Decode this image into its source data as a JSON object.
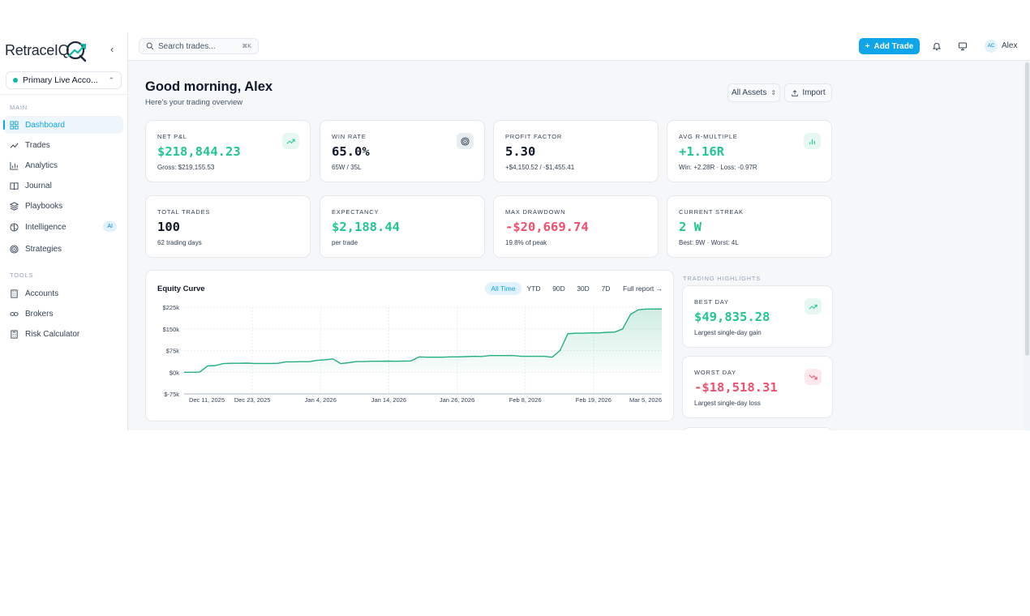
{
  "app": {
    "logo_text": "RetraceIQ"
  },
  "sidebar": {
    "account": {
      "label": "Primary Live Acco..."
    },
    "section_main": "MAIN",
    "section_tools": "TOOLS",
    "main_items": [
      {
        "label": "Dashboard",
        "icon": "dashboard-icon",
        "active": true
      },
      {
        "label": "Trades",
        "icon": "trend-icon"
      },
      {
        "label": "Analytics",
        "icon": "bar-chart-icon"
      },
      {
        "label": "Journal",
        "icon": "book-icon"
      },
      {
        "label": "Playbooks",
        "icon": "layers-icon"
      },
      {
        "label": "Intelligence",
        "icon": "brain-icon",
        "badge": "AI"
      },
      {
        "label": "Strategies",
        "icon": "target-icon"
      }
    ],
    "tool_items": [
      {
        "label": "Accounts",
        "icon": "building-icon"
      },
      {
        "label": "Brokers",
        "icon": "link-icon"
      },
      {
        "label": "Risk Calculator",
        "icon": "calculator-icon"
      }
    ]
  },
  "topbar": {
    "search_placeholder": "Search trades...",
    "search_shortcut": "⌘K",
    "add_trade_label": "Add Trade",
    "user_initials": "AC",
    "user_name": "Alex"
  },
  "header": {
    "greeting": "Good morning, Alex",
    "subtitle": "Here's your trading overview",
    "asset_filter": "All Assets",
    "import_label": "Import"
  },
  "stats": [
    {
      "label": "NET P&L",
      "value": "$218,844.23",
      "sub": "Gross: $219,155.53",
      "tone": "green",
      "icon": "trend-up-icon"
    },
    {
      "label": "WIN RATE",
      "value": "65.0%",
      "sub": "65W / 35L",
      "tone": "dark",
      "icon": "target-icon"
    },
    {
      "label": "PROFIT FACTOR",
      "value": "5.30",
      "sub": "+$4,150.52 / -$1,455.41",
      "tone": "dark"
    },
    {
      "label": "AVG R-MULTIPLE",
      "value": "+1.16R",
      "sub": "Win: +2.28R · Loss: -0.97R",
      "tone": "green",
      "icon": "bar-chart-icon"
    },
    {
      "label": "TOTAL TRADES",
      "value": "100",
      "sub": "62 trading days",
      "tone": "dark"
    },
    {
      "label": "EXPECTANCY",
      "value": "$2,188.44",
      "sub": "per trade",
      "tone": "green"
    },
    {
      "label": "MAX DRAWDOWN",
      "value": "-$20,669.74",
      "sub": "19.8% of peak",
      "tone": "red"
    },
    {
      "label": "CURRENT STREAK",
      "value": "2 W",
      "sub": "Best: 9W · Worst: 4L",
      "tone": "green"
    }
  ],
  "equity_chart": {
    "title": "Equity Curve",
    "ranges": [
      "All Time",
      "YTD",
      "90D",
      "30D",
      "7D"
    ],
    "active_range": "All Time",
    "full_report": "Full report →",
    "accent_color": "#22b07d"
  },
  "chart_data": {
    "type": "area",
    "title": "Equity Curve",
    "xlabel": "",
    "ylabel": "",
    "yticks": [
      "$225k",
      "$150k",
      "$75k",
      "$0k",
      "$-75k"
    ],
    "ytick_values": [
      225000,
      150000,
      75000,
      0,
      -75000
    ],
    "xticks": [
      "Dec 11, 2025",
      "Dec 23, 2025",
      "Jan 4, 2026",
      "Jan 14, 2026",
      "Jan 26, 2026",
      "Feb 8, 2026",
      "Feb 19, 2026",
      "Mar 5, 2026"
    ],
    "ylim": [
      -75000,
      225000
    ],
    "grid": true,
    "x": [
      0,
      1,
      2,
      3,
      4,
      5,
      6,
      7,
      8,
      9,
      10,
      11,
      12,
      13,
      14,
      15,
      16,
      17,
      18,
      19,
      20,
      21,
      22,
      23,
      24,
      25,
      26,
      27,
      28,
      29,
      30,
      31,
      32,
      33,
      34,
      35,
      36,
      37,
      38,
      39,
      40,
      41,
      42,
      43,
      44,
      45,
      46,
      47,
      48,
      49,
      50,
      51,
      52,
      53,
      54,
      55,
      56,
      57,
      58,
      59,
      60,
      61
    ],
    "series": [
      {
        "values": [
          0,
          0,
          500,
          22000,
          23000,
          30000,
          31000,
          31000,
          31500,
          30500,
          30500,
          30500,
          31000,
          36000,
          36000,
          36500,
          36500,
          41000,
          43000,
          46000,
          30000,
          33000,
          37000,
          37000,
          38000,
          38000,
          38500,
          38000,
          38500,
          39000,
          53000,
          52000,
          52000,
          52000,
          53000,
          53000,
          54000,
          55000,
          54500,
          57500,
          57500,
          57500,
          58000,
          55000,
          55000,
          55000,
          55000,
          52000,
          75000,
          133000,
          135000,
          135000,
          136000,
          136000,
          138000,
          139000,
          150000,
          200000,
          216000,
          218500,
          218500,
          218800
        ]
      }
    ]
  },
  "highlights": {
    "title": "TRADING HIGHLIGHTS",
    "items": [
      {
        "label": "BEST DAY",
        "value": "$49,835.28",
        "sub": "Largest single-day gain",
        "tone": "green",
        "icon": "trend-up-icon"
      },
      {
        "label": "WORST DAY",
        "value": "-$18,518.31",
        "sub": "Largest single-day loss",
        "tone": "red",
        "icon": "trend-down-icon"
      }
    ]
  }
}
